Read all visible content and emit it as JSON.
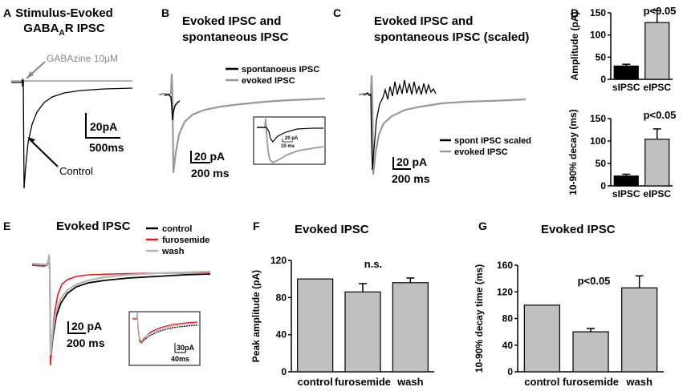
{
  "colors": {
    "black": "#000000",
    "gray": "#999999",
    "red": "#e8191c",
    "bar_gray": "#c0c0c0",
    "light_gray": "#b5b5b5"
  },
  "panels": {
    "A": {
      "letter": "A",
      "title_line1": "Stimulus-Evoked",
      "title_line2_pre": "GABA",
      "title_sub": "A",
      "title_line2_post": "R  IPSC",
      "drug_label": "GABAzine 10μM",
      "control_label": "Control",
      "scale_y": "20pA",
      "scale_x": "500ms"
    },
    "B": {
      "letter": "B",
      "title_line1": "Evoked IPSC and",
      "title_line2": "spontaneous IPSC",
      "legend": [
        "spontanoeus IPSC",
        "evoked IPSC"
      ],
      "scale_y": "20 pA",
      "scale_x": "200 ms",
      "inset_scale_y": "20 pA",
      "inset_scale_x": "10 ms"
    },
    "C": {
      "letter": "C",
      "title_line1": "Evoked IPSC and",
      "title_line2": "spontaneous IPSC (scaled)",
      "legend": [
        "spont IPSC scaled",
        "evoked IPSC"
      ],
      "scale_y": "20 pA",
      "scale_x": "200 ms"
    },
    "D": {
      "letter": "D"
    },
    "E": {
      "letter": "E",
      "title": "Evoked IPSC",
      "legend": [
        "control",
        "furosemide",
        "wash"
      ],
      "scale_y": "20 pA",
      "scale_x": "200 ms",
      "inset_scale_y": "30pA",
      "inset_scale_x": "40ms"
    },
    "F": {
      "letter": "F"
    },
    "G": {
      "letter": "G"
    }
  },
  "chart_data": [
    {
      "id": "D-top",
      "type": "bar",
      "categories": [
        "sIPSC",
        "eIPSC"
      ],
      "values": [
        30,
        128
      ],
      "errors": [
        4,
        27
      ],
      "ylabel": "Amplitude (pA)",
      "ylim": [
        0,
        150
      ],
      "yticks": [
        0,
        50,
        100,
        150
      ],
      "annotation": "p<0.05"
    },
    {
      "id": "D-bottom",
      "type": "bar",
      "categories": [
        "sIPSC",
        "eIPSC"
      ],
      "values": [
        22,
        104
      ],
      "errors": [
        4,
        23
      ],
      "ylabel": "10-90% decay (ms)",
      "ylim": [
        0,
        150
      ],
      "yticks": [
        0,
        50,
        100,
        150
      ],
      "annotation": "p<0.05"
    },
    {
      "id": "F",
      "type": "bar",
      "title": "Evoked IPSC",
      "categories": [
        "control",
        "furosemide",
        "wash"
      ],
      "values": [
        100,
        86,
        96
      ],
      "errors": [
        0,
        9,
        5
      ],
      "ylabel": "Peak amplitude (pA)",
      "ylim": [
        0,
        120
      ],
      "yticks": [
        0,
        40,
        80,
        120
      ],
      "annotation": "n.s."
    },
    {
      "id": "G",
      "type": "bar",
      "title": "Evoked IPSC",
      "categories": [
        "control",
        "furosemide",
        "wash"
      ],
      "values": [
        100,
        60,
        126
      ],
      "errors": [
        0,
        5,
        18
      ],
      "ylabel": "10-90% decay time (ms)",
      "ylim": [
        0,
        160
      ],
      "yticks": [
        0,
        40,
        80,
        120,
        160
      ],
      "annotation": "p<0.05"
    }
  ]
}
